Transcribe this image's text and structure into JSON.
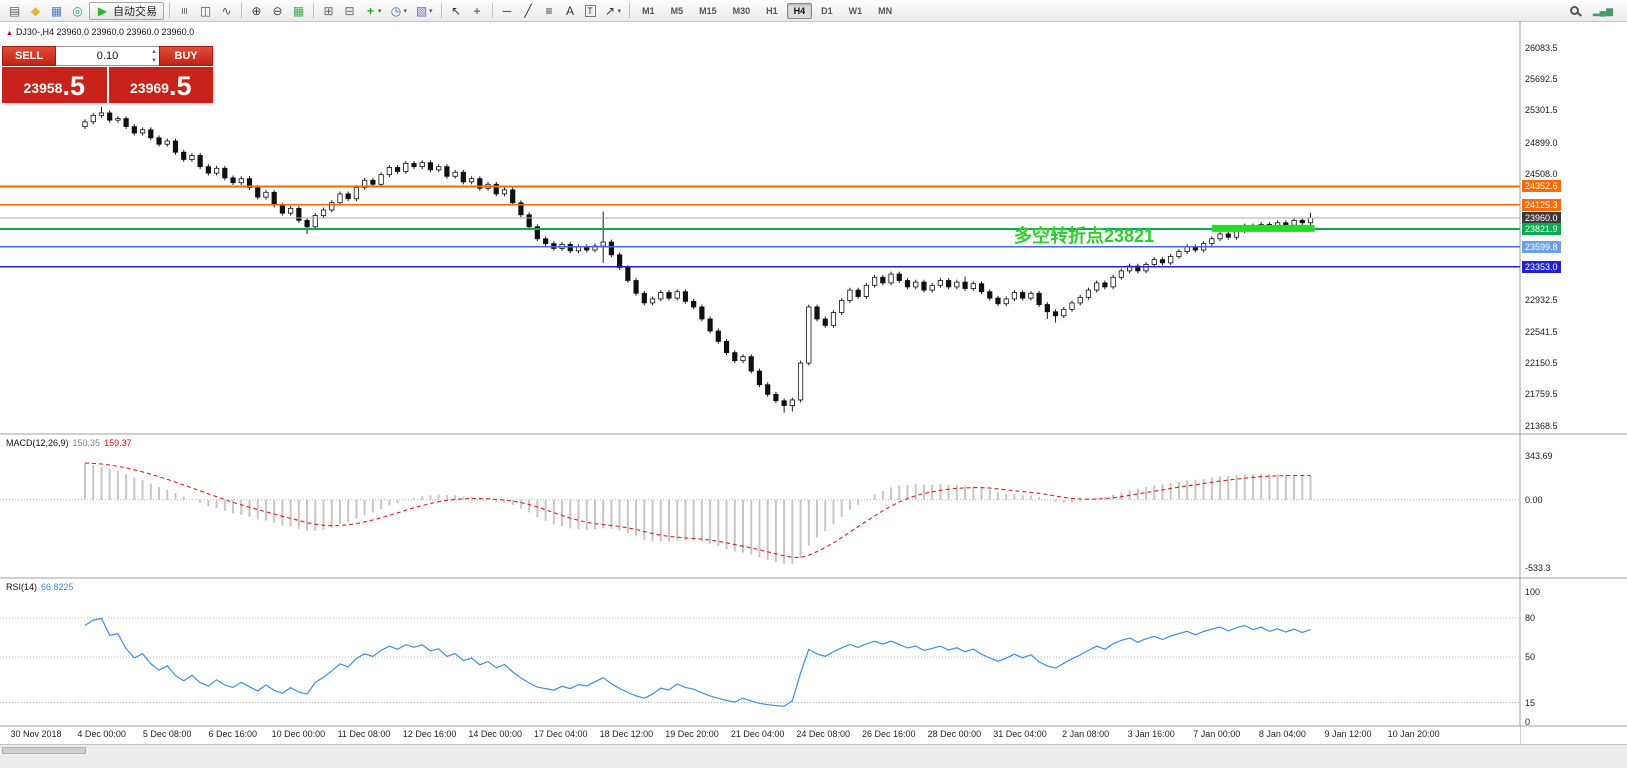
{
  "toolbar": {
    "items": [
      {
        "name": "new-order-icon",
        "glyph": "▤",
        "color": "#606060"
      },
      {
        "name": "market-watch-icon",
        "glyph": "◆",
        "color": "#e3b33a"
      },
      {
        "name": "new-chart-icon",
        "glyph": "▦",
        "color": "#4a7ebb"
      },
      {
        "name": "navigator-icon",
        "glyph": "◎",
        "color": "#2f9e63"
      },
      {
        "name": "auto-trading-button",
        "type": "button",
        "glyph": "▶",
        "color": "#2db52d",
        "label": "自动交易"
      },
      {
        "type": "sep"
      },
      {
        "name": "bar-chart-icon",
        "glyph": "≡",
        "color": "#666666",
        "rot": 90
      },
      {
        "name": "candlestick-chart-icon",
        "glyph": "◫",
        "color": "#555555"
      },
      {
        "name": "line-chart-icon",
        "glyph": "∿",
        "color": "#555555"
      },
      {
        "type": "sep"
      },
      {
        "name": "zoom-in-icon",
        "glyph": "⊕",
        "color": "#444444"
      },
      {
        "name": "zoom-out-icon",
        "glyph": "⊖",
        "color": "#444444"
      },
      {
        "name": "grid-icon",
        "glyph": "▦",
        "color": "#3fae49"
      },
      {
        "type": "sep"
      },
      {
        "name": "tile-windows-icon",
        "glyph": "⊞",
        "color": "#666666"
      },
      {
        "name": "cascade-windows-icon",
        "glyph": "⊟",
        "color": "#666666"
      },
      {
        "name": "new-order-plus-icon",
        "glyph": "+",
        "color": "#1faf1f",
        "bold": true,
        "dropdown": true
      },
      {
        "name": "periods-icon",
        "glyph": "◷",
        "color": "#3a6ebf",
        "dropdown": true
      },
      {
        "name": "templates-icon",
        "glyph": "▧",
        "color": "#7d68b5",
        "dropdown": true
      },
      {
        "type": "sep"
      },
      {
        "name": "cursor-icon",
        "glyph": "↖",
        "color": "#333333"
      },
      {
        "name": "crosshair-icon",
        "glyph": "+",
        "color": "#333333"
      },
      {
        "type": "sep"
      },
      {
        "name": "horizontal-line-icon",
        "glyph": "─",
        "color": "#333333"
      },
      {
        "name": "trendline-icon",
        "glyph": "╱",
        "color": "#333333"
      },
      {
        "name": "fibonacci-icon",
        "glyph": "≡",
        "color": "#333333"
      },
      {
        "name": "text-icon",
        "glyph": "A",
        "color": "#333333"
      },
      {
        "name": "label-icon",
        "glyph": "T",
        "color": "#333333",
        "boxed": true
      },
      {
        "name": "shapes-icon",
        "glyph": "↗",
        "color": "#333333",
        "dropdown": true
      },
      {
        "type": "sep"
      }
    ],
    "timeframes": [
      "M1",
      "M5",
      "M15",
      "M30",
      "H1",
      "H4",
      "D1",
      "W1",
      "MN"
    ],
    "active_timeframe": "H4",
    "connection_glyph": "▂▄▆"
  },
  "chart_header": {
    "text": "DJ30-,H4 23960.0 23960.0 23960.0 23960.0"
  },
  "trade_panel": {
    "sell_label": "SELL",
    "buy_label": "BUY",
    "volume": "0.10",
    "sell_price_small": "23958",
    "sell_price_big": ".5",
    "buy_price_small": "23969",
    "buy_price_big": ".5"
  },
  "annotation": {
    "text": "多空转折点23821",
    "color": "#2ecc2e"
  },
  "chart_data": {
    "type": "candlestick",
    "symbol": "DJ30-",
    "timeframe": "H4",
    "ohlc_display": [
      "23960.0",
      "23960.0",
      "23960.0",
      "23960.0"
    ],
    "price_ticks": [
      26083.5,
      25692.5,
      25301.5,
      24899.0,
      24508.0,
      22932.5,
      22541.5,
      22150.5,
      21759.5,
      21368.5
    ],
    "ylim": [
      21290,
      26180
    ],
    "first_open": 25100,
    "default_wick": 30,
    "closes": [
      25160,
      25240,
      25270,
      25180,
      25200,
      25100,
      25020,
      25060,
      24960,
      24880,
      24920,
      24780,
      24690,
      24740,
      24600,
      24520,
      24580,
      24460,
      24400,
      24450,
      24340,
      24220,
      24280,
      24120,
      24020,
      24080,
      23930,
      23850,
      23990,
      24060,
      24150,
      24260,
      24200,
      24340,
      24430,
      24380,
      24500,
      24590,
      24540,
      24640,
      24600,
      24650,
      24560,
      24600,
      24480,
      24530,
      24410,
      24450,
      24330,
      24380,
      24260,
      24310,
      24150,
      24000,
      23850,
      23700,
      23640,
      23580,
      23630,
      23550,
      23600,
      23560,
      23610,
      23660,
      23500,
      23340,
      23180,
      23020,
      22900,
      22950,
      23030,
      22960,
      23040,
      22920,
      22850,
      22700,
      22550,
      22420,
      22280,
      22180,
      22230,
      22050,
      21880,
      21760,
      21680,
      21620,
      21690,
      22150,
      22850,
      22700,
      22620,
      22780,
      22930,
      23060,
      22980,
      23120,
      23220,
      23150,
      23260,
      23180,
      23100,
      23160,
      23060,
      23120,
      23180,
      23100,
      23160,
      23080,
      23140,
      23040,
      22960,
      22890,
      22950,
      23030,
      22960,
      23020,
      22880,
      22790,
      22740,
      22820,
      22900,
      22970,
      23060,
      23150,
      23100,
      23220,
      23300,
      23360,
      23300,
      23380,
      23440,
      23400,
      23480,
      23540,
      23600,
      23560,
      23640,
      23700,
      23760,
      23720,
      23800,
      23860,
      23820,
      23880,
      23840,
      23900,
      23870,
      23930,
      23900,
      23960
    ],
    "wick_overrides": {
      "2": [
        45,
        0
      ],
      "27": [
        0,
        60
      ],
      "63": [
        350,
        180
      ],
      "85": [
        0,
        60
      ],
      "86": [
        0,
        45
      ],
      "107": [
        40,
        0
      ],
      "117": [
        0,
        60
      ],
      "118": [
        0,
        55
      ],
      "149": [
        35,
        0
      ]
    },
    "levels": [
      {
        "price": 24352.6,
        "label": "24352.6",
        "line_color": "#ff6a00",
        "line_width": 1.6,
        "badge_color": "#ff6a00"
      },
      {
        "price": 24125.3,
        "label": "24125.3",
        "line_color": "#ff6a00",
        "line_width": 1.6,
        "badge_color": "#ff6a00"
      },
      {
        "price": 23960.0,
        "label": "23960.0",
        "line_color": "#a8a8a8",
        "line_width": 1,
        "badge_color": "#3c3c3c"
      },
      {
        "price": 23821.9,
        "label": "23821.9",
        "line_color": "#00b050",
        "line_width": 1.6,
        "badge_color": "#00b050"
      },
      {
        "price": 23599.8,
        "label": "23599.8",
        "line_color": "#4169e1",
        "line_width": 1.6,
        "badge_color": "#6d9eeb"
      },
      {
        "price": 23353.0,
        "label": "23353.0",
        "line_color": "#2020dd",
        "line_width": 1.6,
        "badge_color": "#2020dd"
      }
    ],
    "highlight_segment": {
      "price": 23830,
      "start_index": 137,
      "end_index": 149,
      "thickness": 7,
      "color": "#22dd22"
    },
    "time_labels": [
      "30 Nov 2018",
      "4 Dec 00:00",
      "5 Dec 08:00",
      "6 Dec 16:00",
      "10 Dec 00:00",
      "11 Dec 08:00",
      "12 Dec 16:00",
      "14 Dec 00:00",
      "17 Dec 04:00",
      "18 Dec 12:00",
      "19 Dec 20:00",
      "21 Dec 04:00",
      "24 Dec 08:00",
      "26 Dec 16:00",
      "28 Dec 00:00",
      "31 Dec 04:00",
      "2 Jan 08:00",
      "3 Jan 16:00",
      "7 Jan 00:00",
      "8 Jan 04:00",
      "9 Jan 12:00",
      "10 Jan 20:00"
    ],
    "indicators": {
      "macd": {
        "label": "MACD(12,26,9)",
        "values_text": [
          "150.35",
          "159.37"
        ],
        "ticks": [
          "343.69",
          "0.00",
          "-533.3"
        ],
        "ylim": [
          -580,
          420
        ],
        "histogram_color": "#c6c6c6",
        "signal_color": "#dd2222"
      },
      "rsi": {
        "label": "RSI(14)",
        "value_text": "66.8225",
        "ticks": [
          100,
          80,
          50,
          15,
          0
        ],
        "levels": [
          80,
          50,
          15
        ],
        "ylim": [
          0,
          100
        ],
        "line_color": "#3f8fdf"
      }
    }
  }
}
